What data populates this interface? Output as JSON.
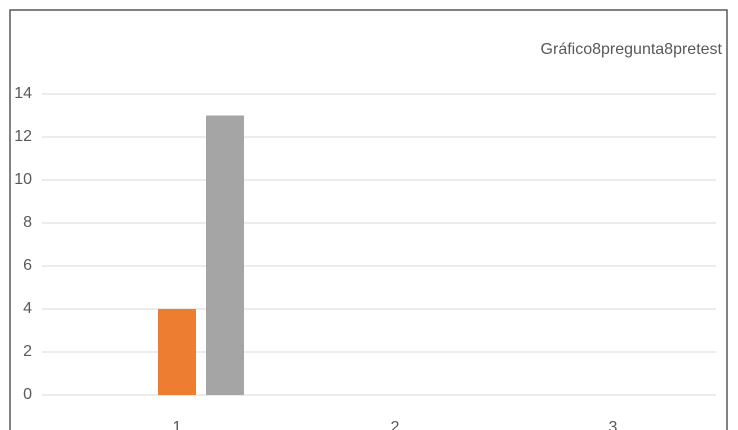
{
  "chart_data": {
    "type": "bar",
    "title": "Gráfico8pregunta8pretest",
    "categories": [
      "1",
      "2",
      "3"
    ],
    "series": [
      {
        "color": "#4472c4",
        "values": [
          0,
          0,
          0
        ]
      },
      {
        "color": "#ed7d31",
        "values": [
          4,
          0,
          0
        ]
      },
      {
        "color": "#a5a5a5",
        "values": [
          13,
          0,
          0
        ]
      }
    ],
    "ylim": [
      0,
      14
    ],
    "yticks": [
      0,
      2,
      4,
      6,
      8,
      10,
      12,
      14
    ],
    "grid": true
  }
}
